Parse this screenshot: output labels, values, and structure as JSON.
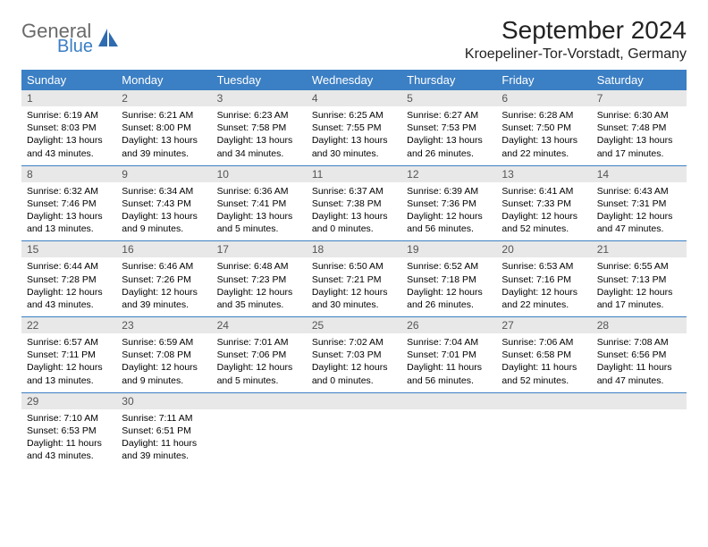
{
  "logo": {
    "top": "General",
    "bottom": "Blue"
  },
  "header": {
    "title": "September 2024",
    "location": "Kroepeliner-Tor-Vorstadt, Germany"
  },
  "colors": {
    "header_bg": "#3b7fc4",
    "header_text": "#ffffff",
    "daynum_bg": "#e8e8e8",
    "week_border": "#3b7fc4"
  },
  "daynames": [
    "Sunday",
    "Monday",
    "Tuesday",
    "Wednesday",
    "Thursday",
    "Friday",
    "Saturday"
  ],
  "weeks": [
    [
      {
        "n": "1",
        "sr": "6:19 AM",
        "ss": "8:03 PM",
        "dl": "13 hours and 43 minutes."
      },
      {
        "n": "2",
        "sr": "6:21 AM",
        "ss": "8:00 PM",
        "dl": "13 hours and 39 minutes."
      },
      {
        "n": "3",
        "sr": "6:23 AM",
        "ss": "7:58 PM",
        "dl": "13 hours and 34 minutes."
      },
      {
        "n": "4",
        "sr": "6:25 AM",
        "ss": "7:55 PM",
        "dl": "13 hours and 30 minutes."
      },
      {
        "n": "5",
        "sr": "6:27 AM",
        "ss": "7:53 PM",
        "dl": "13 hours and 26 minutes."
      },
      {
        "n": "6",
        "sr": "6:28 AM",
        "ss": "7:50 PM",
        "dl": "13 hours and 22 minutes."
      },
      {
        "n": "7",
        "sr": "6:30 AM",
        "ss": "7:48 PM",
        "dl": "13 hours and 17 minutes."
      }
    ],
    [
      {
        "n": "8",
        "sr": "6:32 AM",
        "ss": "7:46 PM",
        "dl": "13 hours and 13 minutes."
      },
      {
        "n": "9",
        "sr": "6:34 AM",
        "ss": "7:43 PM",
        "dl": "13 hours and 9 minutes."
      },
      {
        "n": "10",
        "sr": "6:36 AM",
        "ss": "7:41 PM",
        "dl": "13 hours and 5 minutes."
      },
      {
        "n": "11",
        "sr": "6:37 AM",
        "ss": "7:38 PM",
        "dl": "13 hours and 0 minutes."
      },
      {
        "n": "12",
        "sr": "6:39 AM",
        "ss": "7:36 PM",
        "dl": "12 hours and 56 minutes."
      },
      {
        "n": "13",
        "sr": "6:41 AM",
        "ss": "7:33 PM",
        "dl": "12 hours and 52 minutes."
      },
      {
        "n": "14",
        "sr": "6:43 AM",
        "ss": "7:31 PM",
        "dl": "12 hours and 47 minutes."
      }
    ],
    [
      {
        "n": "15",
        "sr": "6:44 AM",
        "ss": "7:28 PM",
        "dl": "12 hours and 43 minutes."
      },
      {
        "n": "16",
        "sr": "6:46 AM",
        "ss": "7:26 PM",
        "dl": "12 hours and 39 minutes."
      },
      {
        "n": "17",
        "sr": "6:48 AM",
        "ss": "7:23 PM",
        "dl": "12 hours and 35 minutes."
      },
      {
        "n": "18",
        "sr": "6:50 AM",
        "ss": "7:21 PM",
        "dl": "12 hours and 30 minutes."
      },
      {
        "n": "19",
        "sr": "6:52 AM",
        "ss": "7:18 PM",
        "dl": "12 hours and 26 minutes."
      },
      {
        "n": "20",
        "sr": "6:53 AM",
        "ss": "7:16 PM",
        "dl": "12 hours and 22 minutes."
      },
      {
        "n": "21",
        "sr": "6:55 AM",
        "ss": "7:13 PM",
        "dl": "12 hours and 17 minutes."
      }
    ],
    [
      {
        "n": "22",
        "sr": "6:57 AM",
        "ss": "7:11 PM",
        "dl": "12 hours and 13 minutes."
      },
      {
        "n": "23",
        "sr": "6:59 AM",
        "ss": "7:08 PM",
        "dl": "12 hours and 9 minutes."
      },
      {
        "n": "24",
        "sr": "7:01 AM",
        "ss": "7:06 PM",
        "dl": "12 hours and 5 minutes."
      },
      {
        "n": "25",
        "sr": "7:02 AM",
        "ss": "7:03 PM",
        "dl": "12 hours and 0 minutes."
      },
      {
        "n": "26",
        "sr": "7:04 AM",
        "ss": "7:01 PM",
        "dl": "11 hours and 56 minutes."
      },
      {
        "n": "27",
        "sr": "7:06 AM",
        "ss": "6:58 PM",
        "dl": "11 hours and 52 minutes."
      },
      {
        "n": "28",
        "sr": "7:08 AM",
        "ss": "6:56 PM",
        "dl": "11 hours and 47 minutes."
      }
    ],
    [
      {
        "n": "29",
        "sr": "7:10 AM",
        "ss": "6:53 PM",
        "dl": "11 hours and 43 minutes."
      },
      {
        "n": "30",
        "sr": "7:11 AM",
        "ss": "6:51 PM",
        "dl": "11 hours and 39 minutes."
      },
      null,
      null,
      null,
      null,
      null
    ]
  ],
  "labels": {
    "sunrise": "Sunrise:",
    "sunset": "Sunset:",
    "daylight": "Daylight:"
  }
}
